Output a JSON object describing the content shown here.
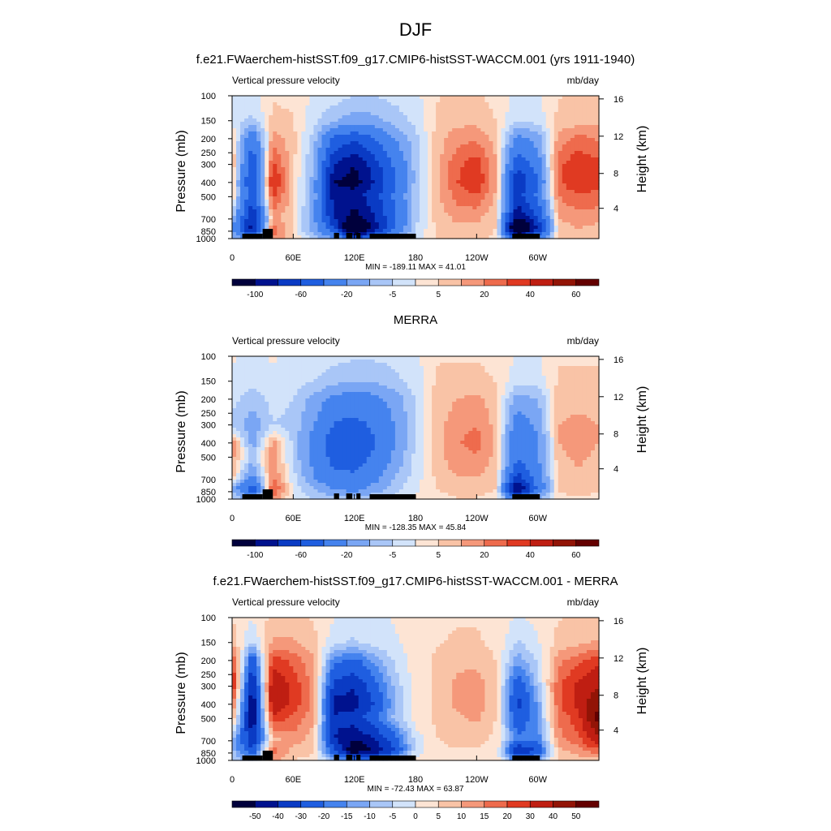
{
  "figure": {
    "title": "DJF"
  },
  "chart_data": [
    {
      "type": "heatmap",
      "title": "f.e21.FWaerchem-histSST.f09_g17.CMIP6-histSST-WACCM.001 (yrs 1911-1940)",
      "left_label": "Vertical pressure velocity",
      "right_label": "mb/day",
      "ylabel": "Pressure (mb)",
      "ylabel_right": "Height (km)",
      "x_ticks": [
        "0",
        "60E",
        "120E",
        "180",
        "120W",
        "60W"
      ],
      "y_ticks": [
        "100",
        "150",
        "200",
        "250",
        "300",
        "400",
        "500",
        "700",
        "850",
        "1000"
      ],
      "y_right_ticks": [
        "16",
        "12",
        "8",
        "4"
      ],
      "stats": "MIN = -189.11  MAX =  41.01",
      "colorbar_labels": [
        "-100",
        "-60",
        "-20",
        "-5",
        "5",
        "20",
        "40",
        "60"
      ],
      "colorbar_colors": [
        "#00003c",
        "#00128e",
        "#0a3bc4",
        "#1f5ee0",
        "#4583ee",
        "#7aa6f4",
        "#a9c6f7",
        "#d2e3fa",
        "#fde4d4",
        "#f9c3a6",
        "#f5987a",
        "#ee6b4d",
        "#e03a22",
        "#bf1e12",
        "#921406",
        "#640000"
      ],
      "field": {
        "lon": [
          0,
          20,
          40,
          60,
          80,
          100,
          120,
          140,
          160,
          180,
          200,
          220,
          240,
          260,
          280,
          300,
          320,
          340,
          360
        ],
        "pressure": [
          100,
          150,
          200,
          300,
          400,
          500,
          700,
          850,
          1000
        ],
        "values": [
          [
            -3,
            -4,
            2,
            1,
            -3,
            -5,
            -8,
            -8,
            -6,
            -4,
            2,
            3,
            3,
            1,
            -4,
            -3,
            2,
            3,
            4
          ],
          [
            -4,
            -10,
            4,
            3,
            -6,
            -14,
            -20,
            -18,
            -12,
            -6,
            3,
            6,
            6,
            2,
            -8,
            -6,
            4,
            5,
            6
          ],
          [
            6,
            -40,
            12,
            4,
            -10,
            -50,
            -60,
            -45,
            -25,
            -10,
            4,
            12,
            14,
            5,
            -30,
            -20,
            10,
            18,
            14
          ],
          [
            10,
            -60,
            25,
            4,
            -15,
            -80,
            -100,
            -70,
            -40,
            -12,
            5,
            20,
            28,
            8,
            -60,
            -35,
            20,
            30,
            25
          ],
          [
            8,
            -70,
            35,
            4,
            -18,
            -100,
            -110,
            -80,
            -45,
            -12,
            5,
            22,
            30,
            8,
            -80,
            -45,
            20,
            32,
            25
          ],
          [
            6,
            -60,
            25,
            4,
            -18,
            -90,
            -90,
            -70,
            -40,
            -10,
            5,
            18,
            22,
            6,
            -70,
            -40,
            15,
            22,
            20
          ],
          [
            -10,
            -80,
            10,
            2,
            -20,
            -80,
            -110,
            -80,
            -45,
            -10,
            4,
            10,
            10,
            3,
            -100,
            -60,
            8,
            12,
            10
          ],
          [
            -25,
            -90,
            20,
            2,
            -20,
            -60,
            -150,
            -90,
            -40,
            -8,
            3,
            6,
            6,
            2,
            -150,
            -80,
            5,
            8,
            6
          ],
          [
            -10,
            -40,
            15,
            2,
            -10,
            -20,
            -60,
            -40,
            -20,
            -5,
            2,
            4,
            4,
            1,
            -60,
            -30,
            3,
            4,
            3
          ]
        ]
      }
    },
    {
      "type": "heatmap",
      "title": "MERRA",
      "left_label": "Vertical pressure velocity",
      "right_label": "mb/day",
      "ylabel": "Pressure (mb)",
      "ylabel_right": "Height (km)",
      "x_ticks": [
        "0",
        "60E",
        "120E",
        "180",
        "120W",
        "60W"
      ],
      "y_ticks": [
        "100",
        "150",
        "200",
        "250",
        "300",
        "400",
        "500",
        "700",
        "850",
        "1000"
      ],
      "y_right_ticks": [
        "16",
        "12",
        "8",
        "4"
      ],
      "stats": "MIN = -128.35  MAX =  45.84",
      "colorbar_labels": [
        "-100",
        "-60",
        "-20",
        "-5",
        "5",
        "20",
        "40",
        "60"
      ],
      "colorbar_colors": [
        "#00003c",
        "#00128e",
        "#0a3bc4",
        "#1f5ee0",
        "#4583ee",
        "#7aa6f4",
        "#a9c6f7",
        "#d2e3fa",
        "#fde4d4",
        "#f9c3a6",
        "#f5987a",
        "#ee6b4d",
        "#e03a22",
        "#bf1e12",
        "#921406",
        "#640000"
      ],
      "field": {
        "lon": [
          0,
          20,
          40,
          60,
          80,
          100,
          120,
          140,
          160,
          180,
          200,
          220,
          240,
          260,
          280,
          300,
          320,
          340,
          360
        ],
        "pressure": [
          100,
          150,
          200,
          300,
          400,
          500,
          700,
          850,
          1000
        ],
        "values": [
          [
            -2,
            -3,
            -2,
            -3,
            -4,
            -6,
            -7,
            -7,
            -6,
            -4,
            2,
            2,
            2,
            1,
            -3,
            -3,
            2,
            2,
            2
          ],
          [
            -3,
            -6,
            -3,
            -5,
            -8,
            -12,
            -15,
            -14,
            -10,
            -5,
            3,
            4,
            4,
            2,
            -6,
            -5,
            3,
            3,
            3
          ],
          [
            -6,
            -12,
            -6,
            -8,
            -18,
            -30,
            -35,
            -30,
            -20,
            -8,
            4,
            8,
            10,
            4,
            -20,
            -15,
            5,
            6,
            5
          ],
          [
            -10,
            -20,
            -8,
            -10,
            -25,
            -45,
            -50,
            -40,
            -25,
            -8,
            5,
            12,
            15,
            5,
            -35,
            -22,
            8,
            10,
            8
          ],
          [
            12,
            -20,
            10,
            -10,
            -30,
            -55,
            -60,
            -45,
            -25,
            -8,
            5,
            14,
            18,
            6,
            -45,
            -28,
            8,
            12,
            8
          ],
          [
            10,
            -10,
            12,
            -10,
            -30,
            -50,
            -55,
            -40,
            -22,
            -6,
            5,
            12,
            15,
            5,
            -40,
            -25,
            6,
            10,
            6
          ],
          [
            6,
            -30,
            15,
            -5,
            -25,
            -40,
            -40,
            -30,
            -15,
            -5,
            3,
            8,
            8,
            3,
            -70,
            -35,
            4,
            6,
            4
          ],
          [
            -15,
            -60,
            25,
            -4,
            -15,
            -25,
            -30,
            -20,
            -10,
            -3,
            2,
            4,
            4,
            2,
            -110,
            -40,
            3,
            4,
            3
          ],
          [
            -5,
            -20,
            10,
            -2,
            -8,
            -10,
            -12,
            -8,
            -5,
            -2,
            1,
            2,
            2,
            1,
            -40,
            -15,
            1,
            2,
            1
          ]
        ]
      }
    },
    {
      "type": "heatmap",
      "title": "f.e21.FWaerchem-histSST.f09_g17.CMIP6-histSST-WACCM.001 - MERRA",
      "left_label": "Vertical pressure velocity",
      "right_label": "mb/day",
      "ylabel": "Pressure (mb)",
      "ylabel_right": "Height (km)",
      "x_ticks": [
        "0",
        "60E",
        "120E",
        "180",
        "120W",
        "60W"
      ],
      "y_ticks": [
        "100",
        "150",
        "200",
        "250",
        "300",
        "400",
        "500",
        "700",
        "850",
        "1000"
      ],
      "y_right_ticks": [
        "16",
        "12",
        "8",
        "4"
      ],
      "stats": "MIN = -72.43  MAX =  63.87",
      "colorbar_labels": [
        "-50",
        "-40",
        "-30",
        "-20",
        "-15",
        "-10",
        "-5",
        "0",
        "5",
        "10",
        "15",
        "20",
        "30",
        "40",
        "50"
      ],
      "colorbar_colors": [
        "#00003c",
        "#00128e",
        "#0a3bc4",
        "#1f5ee0",
        "#4583ee",
        "#7aa6f4",
        "#a9c6f7",
        "#d2e3fa",
        "#fde4d4",
        "#f9c3a6",
        "#f5987a",
        "#ee6b4d",
        "#e03a22",
        "#bf1e12",
        "#921406",
        "#640000"
      ],
      "field": {
        "lon": [
          0,
          20,
          40,
          60,
          80,
          100,
          120,
          140,
          160,
          180,
          200,
          220,
          240,
          260,
          280,
          300,
          320,
          340,
          360
        ],
        "pressure": [
          100,
          150,
          200,
          300,
          400,
          500,
          700,
          850,
          1000
        ],
        "values": [
          [
            2,
            -2,
            4,
            4,
            2,
            -2,
            -4,
            -3,
            -2,
            0,
            1,
            2,
            2,
            1,
            -3,
            -1,
            2,
            3,
            3
          ],
          [
            6,
            -8,
            8,
            8,
            4,
            -6,
            -8,
            -5,
            -3,
            0,
            2,
            3,
            3,
            1,
            -8,
            -3,
            4,
            6,
            8
          ],
          [
            20,
            -30,
            20,
            15,
            8,
            -20,
            -25,
            -15,
            -6,
            0,
            3,
            6,
            6,
            2,
            -15,
            -6,
            10,
            15,
            20
          ],
          [
            25,
            -45,
            30,
            20,
            10,
            -35,
            -40,
            -25,
            -10,
            0,
            3,
            8,
            10,
            3,
            -30,
            -10,
            15,
            25,
            30
          ],
          [
            15,
            -50,
            30,
            20,
            10,
            -45,
            -45,
            -30,
            -12,
            0,
            3,
            8,
            10,
            3,
            -35,
            -15,
            15,
            25,
            40
          ],
          [
            10,
            -50,
            20,
            15,
            8,
            -40,
            -35,
            -25,
            -10,
            0,
            3,
            6,
            8,
            2,
            -30,
            -15,
            12,
            20,
            45
          ],
          [
            -10,
            -40,
            5,
            10,
            5,
            -40,
            -50,
            -40,
            -25,
            -5,
            2,
            4,
            4,
            1,
            -20,
            -20,
            10,
            15,
            30
          ],
          [
            -10,
            -30,
            15,
            5,
            3,
            -30,
            -60,
            -50,
            -30,
            -5,
            1,
            2,
            2,
            1,
            -40,
            -30,
            5,
            10,
            15
          ],
          [
            -5,
            -15,
            8,
            2,
            1,
            -10,
            -20,
            -15,
            -10,
            -2,
            0,
            1,
            1,
            0,
            -20,
            -10,
            2,
            4,
            5
          ]
        ]
      }
    }
  ]
}
